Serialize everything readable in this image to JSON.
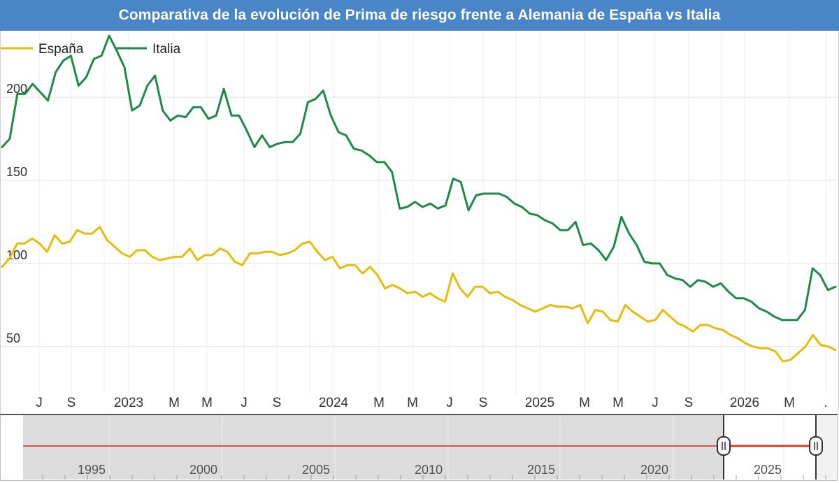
{
  "header": {
    "title": "Comparativa de la evolución de Prima de riesgo frente a Alemania de España vs Italia"
  },
  "chart_data": {
    "type": "line",
    "title": "Comparativa de la evolución de Prima de riesgo frente a Alemania de España vs Italia",
    "xlabel": "",
    "ylabel": "",
    "ylim": [
      23,
      240
    ],
    "y_ticks": [
      50,
      100,
      150,
      200
    ],
    "x_ticks": [
      "J",
      "S",
      "2023",
      "M",
      "M",
      "J",
      "S",
      "2024",
      "M",
      "M",
      "J",
      "S",
      "2025",
      "M",
      "M",
      "J",
      "S",
      "2026",
      "M",
      "."
    ],
    "grid": true,
    "legend": "top-left",
    "series": [
      {
        "name": "España",
        "color": "#e8bc0b",
        "values": [
          98,
          103,
          112,
          112,
          115,
          112,
          107,
          117,
          112,
          113,
          120,
          118,
          118,
          122,
          114,
          110,
          106,
          104,
          108,
          108,
          104,
          102,
          103,
          104,
          104,
          109,
          102,
          105,
          105,
          109,
          107,
          101,
          99,
          106,
          106,
          107,
          107,
          105,
          106,
          108,
          112,
          113,
          107,
          102,
          104,
          97,
          99,
          99,
          94,
          98,
          93,
          85,
          87,
          85,
          82,
          83,
          80,
          82,
          79,
          77,
          94,
          85,
          80,
          86,
          86,
          82,
          83,
          80,
          78,
          75,
          73,
          71,
          73,
          75,
          74,
          74,
          73,
          75,
          64,
          72,
          71,
          66,
          65,
          75,
          71,
          68,
          65,
          66,
          72,
          68,
          64,
          62,
          59,
          63,
          63,
          61,
          60,
          57,
          55,
          52,
          50,
          49,
          49,
          47,
          41,
          42,
          46,
          50,
          57,
          51,
          50,
          48
        ],
        "x_dates": [
          0,
          2.85,
          5.7,
          8.55,
          11.4,
          14.25,
          17.1,
          19.95,
          22.8,
          25.65,
          28.5,
          31.35,
          34.2,
          37.05,
          39.9,
          42.75,
          45.6,
          48.45,
          51.3,
          54.15,
          57,
          59.85,
          62.7,
          65.55,
          68.4,
          71.25,
          74.1,
          76.95,
          79.8,
          82.65,
          85.5,
          88.35,
          91.2,
          94.05,
          96.9,
          99.75,
          102.6,
          105.45,
          108.3,
          111.15,
          114,
          116.85,
          119.7,
          122.55,
          125.4,
          128.25,
          131.1,
          133.95,
          136.8,
          139.65,
          142.5,
          145.35,
          148.2,
          151.05,
          153.9,
          156.75,
          159.6,
          162.45,
          165.3,
          168.15,
          171,
          173.85,
          176.7,
          179.55,
          182.4,
          185.25,
          188.1,
          190.95,
          193.8,
          196.65,
          199.5,
          202.35,
          205.2,
          208.05,
          210.9,
          213.75,
          216.6,
          219.45,
          222.3,
          225.15,
          228,
          230.85,
          233.7,
          236.55,
          239.4,
          242.25,
          245.1,
          247.95,
          250.8,
          253.65,
          256.5,
          259.35,
          262.2,
          265.05,
          267.9,
          270.75,
          273.6,
          276.45,
          279.3,
          282.15,
          285,
          287.85,
          290.7,
          293.55,
          296.4,
          299.25,
          302.1,
          304.95,
          307.8,
          310.65,
          313.5,
          316.35
        ]
      },
      {
        "name": "Italia",
        "color": "#1e8a45",
        "values": [
          170,
          175,
          202,
          202,
          208,
          203,
          198,
          215,
          222,
          225,
          207,
          212,
          223,
          225,
          237,
          228,
          218,
          192,
          195,
          207,
          213,
          192,
          186,
          189,
          188,
          194,
          194,
          187,
          189,
          205,
          189,
          189,
          180,
          170,
          177,
          170,
          172,
          173,
          173,
          178,
          197,
          199,
          204,
          189,
          179,
          177,
          169,
          168,
          165,
          161,
          161,
          155,
          133,
          134,
          137,
          134,
          136,
          133,
          135,
          151,
          149,
          132,
          141,
          142,
          142,
          142,
          140,
          136,
          134,
          130,
          129,
          126,
          124,
          120,
          120,
          125,
          111,
          112,
          108,
          102,
          110,
          128,
          118,
          111,
          101,
          100,
          100,
          93,
          91,
          90,
          86,
          90,
          89,
          86,
          88,
          83,
          79,
          79,
          77,
          73,
          71,
          68,
          66,
          66,
          66,
          72,
          97,
          93,
          84,
          86
        ],
        "x_dates": [
          0,
          2.93,
          5.86,
          8.79,
          11.72,
          14.65,
          17.58,
          20.51,
          23.44,
          26.37,
          29.3,
          32.23,
          35.16,
          38.09,
          41.02,
          43.95,
          46.88,
          49.81,
          52.74,
          55.67,
          58.6,
          61.53,
          64.46,
          67.39,
          70.32,
          73.25,
          76.18,
          79.11,
          82.04,
          84.97,
          87.9,
          90.83,
          93.76,
          96.69,
          99.62,
          102.55,
          105.48,
          108.41,
          111.34,
          114.27,
          117.2,
          120.13,
          123.06,
          125.99,
          128.92,
          131.85,
          134.78,
          137.71,
          140.64,
          143.57,
          146.5,
          149.43,
          152.36,
          155.29,
          158.22,
          161.15,
          164.08,
          167.01,
          169.94,
          172.87,
          175.8,
          178.73,
          181.66,
          184.59,
          187.52,
          190.45,
          193.38,
          196.31,
          199.24,
          202.17,
          205.1,
          208.03,
          210.96,
          213.89,
          216.82,
          219.75,
          222.68,
          225.61,
          228.54,
          231.47,
          234.4,
          237.33,
          240.26,
          243.19,
          246.12,
          249.05,
          251.98,
          254.91,
          257.84,
          260.77,
          263.7,
          266.63,
          269.56,
          272.49,
          275.42,
          278.35,
          281.28,
          284.21,
          287.14,
          290.07,
          293,
          295.93,
          298.86,
          301.79,
          304.72,
          307.65,
          310.58,
          313.51,
          316.44,
          319.37
        ]
      }
    ]
  },
  "navigator": {
    "labels": [
      "1995",
      "2000",
      "2005",
      "2010",
      "2015",
      "2020",
      "2025"
    ],
    "line_color": "#d9534f",
    "handle_left_icon": "grip-handle-icon",
    "handle_right_icon": "grip-handle-icon"
  }
}
